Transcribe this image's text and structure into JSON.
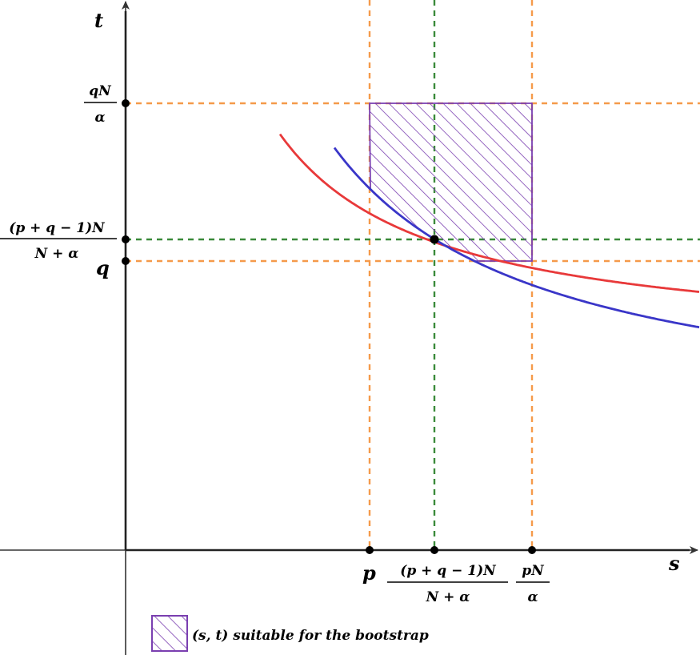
{
  "axes": {
    "x_label": "s",
    "y_label": "t"
  },
  "x_ticks": {
    "p": "p",
    "mid_num": "(p + q − 1)N",
    "mid_den": "N + α",
    "right_num": "pN",
    "right_den": "α"
  },
  "y_ticks": {
    "top_num": "qN",
    "top_den": "α",
    "mid_num": "(p + q − 1)N",
    "mid_den": "N + α",
    "q": "q"
  },
  "legend": {
    "text": "(s, t) suitable for the bootstrap"
  },
  "colors": {
    "red_curve": "#e8393a",
    "blue_curve": "#3a36c8",
    "orange_dash": "#f59a4a",
    "green_dash": "#3a8a3a",
    "hatch": "#7a3fb0",
    "axis": "#000000"
  }
}
